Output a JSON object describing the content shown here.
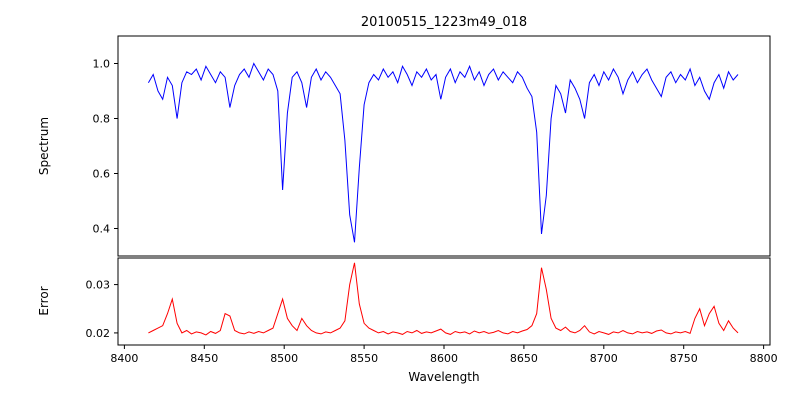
{
  "chart_data": {
    "type": "line",
    "title": "20100515_1223m49_018",
    "xlabel": "Wavelength",
    "xlim": [
      8396,
      8804
    ],
    "xticks": [
      8400,
      8450,
      8500,
      8550,
      8600,
      8650,
      8700,
      8750,
      8800
    ],
    "xtick_labels": [
      "8400",
      "8450",
      "8500",
      "8550",
      "8600",
      "8650",
      "8700",
      "8750",
      "8800"
    ],
    "grid": false,
    "legend": "none",
    "x": [
      8415,
      8418,
      8421,
      8424,
      8427,
      8430,
      8433,
      8436,
      8439,
      8442,
      8445,
      8448,
      8451,
      8454,
      8457,
      8460,
      8463,
      8466,
      8469,
      8472,
      8475,
      8478,
      8481,
      8484,
      8487,
      8490,
      8493,
      8496,
      8499,
      8502,
      8505,
      8508,
      8511,
      8514,
      8517,
      8520,
      8523,
      8526,
      8529,
      8532,
      8535,
      8538,
      8541,
      8544,
      8547,
      8550,
      8553,
      8556,
      8559,
      8562,
      8565,
      8568,
      8571,
      8574,
      8577,
      8580,
      8583,
      8586,
      8589,
      8592,
      8595,
      8598,
      8601,
      8604,
      8607,
      8610,
      8613,
      8616,
      8619,
      8622,
      8625,
      8628,
      8631,
      8634,
      8637,
      8640,
      8643,
      8646,
      8649,
      8652,
      8655,
      8658,
      8661,
      8664,
      8667,
      8670,
      8673,
      8676,
      8679,
      8682,
      8685,
      8688,
      8691,
      8694,
      8697,
      8700,
      8703,
      8706,
      8709,
      8712,
      8715,
      8718,
      8721,
      8724,
      8727,
      8730,
      8733,
      8736,
      8739,
      8742,
      8745,
      8748,
      8751,
      8754,
      8757,
      8760,
      8763,
      8766,
      8769,
      8772,
      8775,
      8778,
      8781,
      8784
    ],
    "panels": [
      {
        "name": "spectrum",
        "ylabel": "Spectrum",
        "color": "#0000ff",
        "ylim": [
          0.3,
          1.1
        ],
        "yticks": [
          0.4,
          0.6,
          0.8,
          1.0
        ],
        "ytick_labels": [
          "0.4",
          "0.6",
          "0.8",
          "1.0"
        ],
        "values": [
          0.93,
          0.96,
          0.9,
          0.87,
          0.95,
          0.92,
          0.8,
          0.93,
          0.97,
          0.96,
          0.98,
          0.94,
          0.99,
          0.96,
          0.93,
          0.97,
          0.95,
          0.84,
          0.92,
          0.96,
          0.98,
          0.95,
          1.0,
          0.97,
          0.94,
          0.98,
          0.96,
          0.9,
          0.54,
          0.82,
          0.95,
          0.97,
          0.93,
          0.84,
          0.95,
          0.98,
          0.94,
          0.97,
          0.95,
          0.92,
          0.89,
          0.72,
          0.45,
          0.35,
          0.62,
          0.85,
          0.93,
          0.96,
          0.94,
          0.98,
          0.95,
          0.97,
          0.93,
          0.99,
          0.96,
          0.92,
          0.97,
          0.95,
          0.98,
          0.94,
          0.96,
          0.87,
          0.95,
          0.98,
          0.93,
          0.97,
          0.95,
          0.99,
          0.94,
          0.97,
          0.92,
          0.96,
          0.98,
          0.94,
          0.97,
          0.95,
          0.93,
          0.97,
          0.95,
          0.91,
          0.88,
          0.75,
          0.38,
          0.52,
          0.8,
          0.92,
          0.89,
          0.82,
          0.94,
          0.91,
          0.87,
          0.8,
          0.93,
          0.96,
          0.92,
          0.97,
          0.94,
          0.98,
          0.95,
          0.89,
          0.94,
          0.97,
          0.93,
          0.96,
          0.98,
          0.94,
          0.91,
          0.88,
          0.95,
          0.97,
          0.93,
          0.96,
          0.94,
          0.98,
          0.92,
          0.95,
          0.9,
          0.87,
          0.93,
          0.96,
          0.91,
          0.97,
          0.94,
          0.96
        ]
      },
      {
        "name": "error",
        "ylabel": "Error",
        "color": "#ff0000",
        "ylim": [
          0.0175,
          0.0355
        ],
        "yticks": [
          0.02,
          0.03
        ],
        "ytick_labels": [
          "0.02",
          "0.03"
        ],
        "values": [
          0.02,
          0.0205,
          0.021,
          0.0215,
          0.024,
          0.027,
          0.022,
          0.02,
          0.0205,
          0.0198,
          0.0202,
          0.02,
          0.0196,
          0.0203,
          0.0199,
          0.0205,
          0.024,
          0.0235,
          0.0205,
          0.02,
          0.0198,
          0.0202,
          0.0199,
          0.0203,
          0.02,
          0.0205,
          0.021,
          0.024,
          0.027,
          0.023,
          0.0215,
          0.0205,
          0.023,
          0.0215,
          0.0205,
          0.02,
          0.0198,
          0.0202,
          0.02,
          0.0205,
          0.021,
          0.0225,
          0.03,
          0.0345,
          0.026,
          0.022,
          0.021,
          0.0205,
          0.02,
          0.0203,
          0.0198,
          0.0202,
          0.02,
          0.0197,
          0.0203,
          0.02,
          0.0205,
          0.0199,
          0.0202,
          0.02,
          0.0204,
          0.0208,
          0.02,
          0.0197,
          0.0203,
          0.02,
          0.0202,
          0.0198,
          0.0204,
          0.02,
          0.0203,
          0.0199,
          0.0201,
          0.0205,
          0.02,
          0.0198,
          0.0203,
          0.02,
          0.0204,
          0.0207,
          0.0215,
          0.024,
          0.0335,
          0.029,
          0.023,
          0.021,
          0.0205,
          0.0212,
          0.0203,
          0.02,
          0.0205,
          0.0215,
          0.0202,
          0.0198,
          0.0203,
          0.02,
          0.0197,
          0.0202,
          0.02,
          0.0205,
          0.02,
          0.0198,
          0.0203,
          0.02,
          0.0202,
          0.0199,
          0.0204,
          0.0206,
          0.02,
          0.0198,
          0.0202,
          0.02,
          0.0203,
          0.0199,
          0.023,
          0.025,
          0.0215,
          0.024,
          0.0255,
          0.022,
          0.0205,
          0.0225,
          0.021,
          0.02
        ]
      }
    ]
  }
}
